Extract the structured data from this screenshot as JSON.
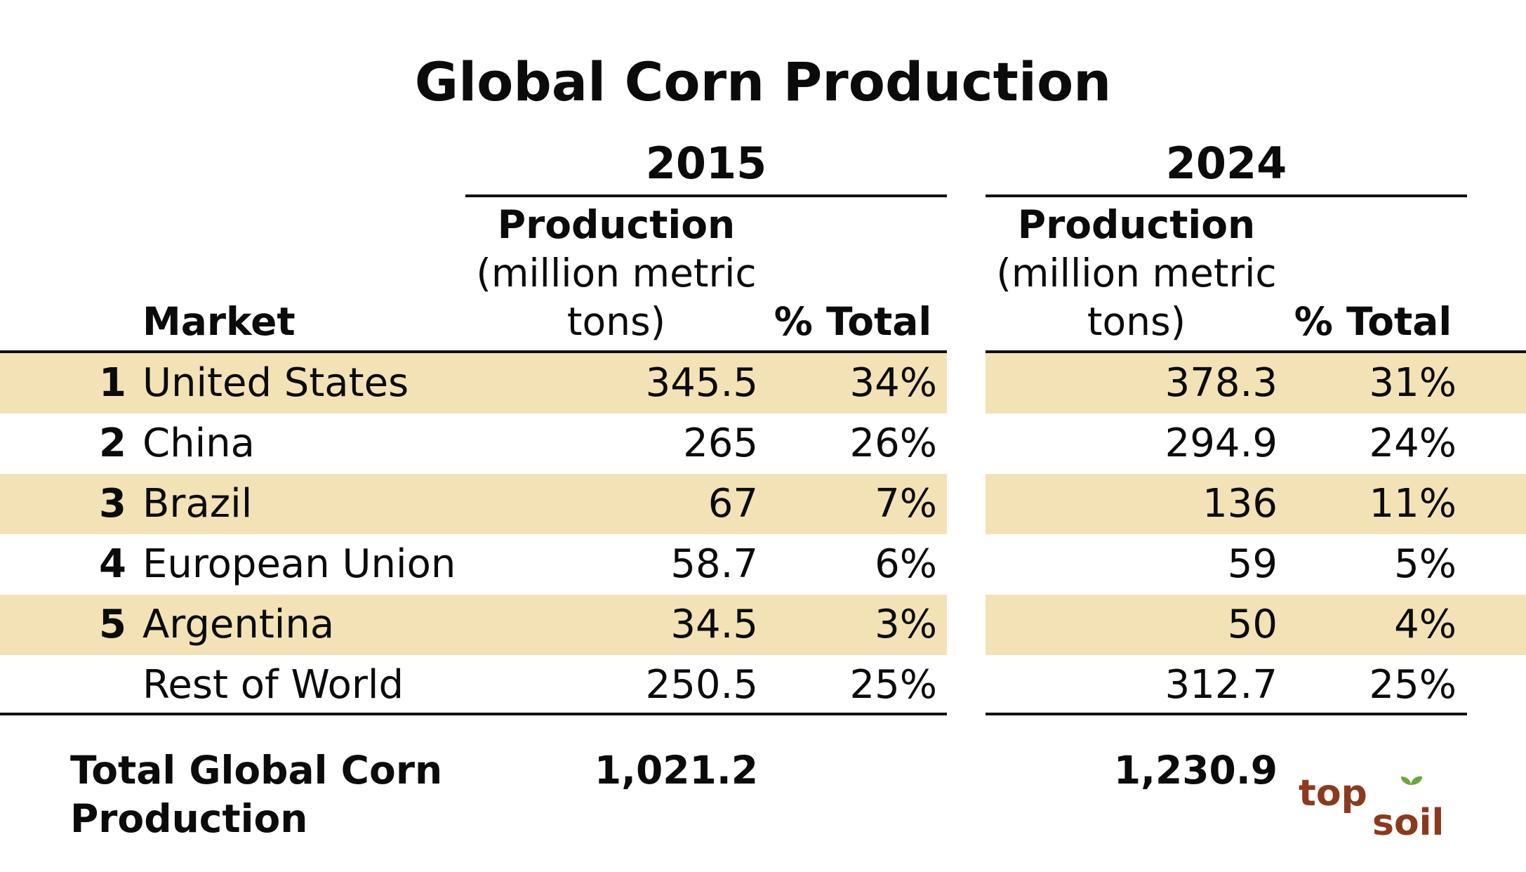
{
  "chart_data": {
    "type": "table",
    "title": "Global Corn Production",
    "market_header": "Market",
    "year_groups": [
      {
        "year": "2015",
        "production_header": [
          "Production",
          "(million metric",
          "tons)"
        ],
        "share_header": "% Total"
      },
      {
        "year": "2024",
        "production_header": [
          "Production",
          "(million metric",
          "tons)"
        ],
        "share_header": "% Total"
      }
    ],
    "rows": [
      {
        "rank": "1",
        "market": "United States",
        "prod_2015": "345.5",
        "pct_2015": "34%",
        "prod_2024": "378.3",
        "pct_2024": "31%",
        "highlight": true
      },
      {
        "rank": "2",
        "market": "China",
        "prod_2015": "265",
        "pct_2015": "26%",
        "prod_2024": "294.9",
        "pct_2024": "24%",
        "highlight": false
      },
      {
        "rank": "3",
        "market": "Brazil",
        "prod_2015": "67",
        "pct_2015": "7%",
        "prod_2024": "136",
        "pct_2024": "11%",
        "highlight": true
      },
      {
        "rank": "4",
        "market": "European Union",
        "prod_2015": "58.7",
        "pct_2015": "6%",
        "prod_2024": "59",
        "pct_2024": "5%",
        "highlight": false
      },
      {
        "rank": "5",
        "market": "Argentina",
        "prod_2015": "34.5",
        "pct_2015": "3%",
        "prod_2024": "50",
        "pct_2024": "4%",
        "highlight": true
      },
      {
        "rank": "",
        "market": "Rest of World",
        "prod_2015": "250.5",
        "pct_2015": "25%",
        "prod_2024": "312.7",
        "pct_2024": "25%",
        "highlight": false
      }
    ],
    "total": {
      "label_line1": "Total Global Corn",
      "label_line2": "Production",
      "value_2015": "1,021.2",
      "value_2024": "1,230.9"
    }
  },
  "logo": {
    "text_top": "top",
    "text_bottom": "soil",
    "color_main": "#8b3a1e",
    "color_leaf": "#6aa83a"
  },
  "colors": {
    "band": "#f2e2b6",
    "text": "#0b0b0b",
    "rule": "#111111"
  }
}
